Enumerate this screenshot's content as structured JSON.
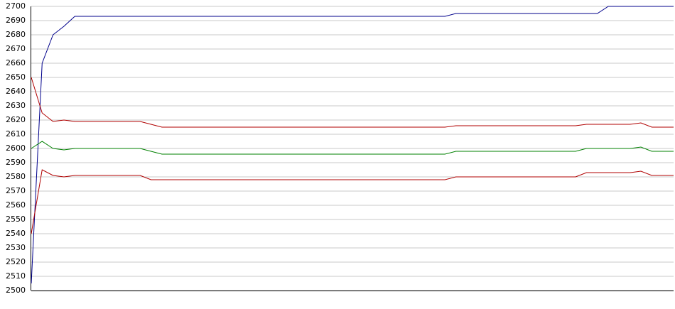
{
  "chart_data": {
    "type": "line",
    "categories": [
      null,
      null,
      null,
      null,
      null,
      null,
      null,
      null,
      null,
      null,
      null,
      null,
      null,
      null,
      null,
      null,
      null,
      null,
      null,
      null,
      null,
      null,
      null,
      null,
      null,
      null,
      null,
      null,
      null,
      null,
      null,
      null,
      null,
      null,
      null,
      null,
      null,
      null,
      null,
      null,
      null,
      null,
      null,
      null,
      null,
      null,
      null,
      null,
      null,
      null,
      null,
      null,
      null,
      null,
      null,
      null,
      null,
      null,
      null,
      null
    ],
    "series": [
      {
        "color": "#00008b",
        "values": [
          2505,
          2660,
          2680,
          2686,
          2693,
          2693,
          2693,
          2693,
          2693,
          2693,
          2693,
          2693,
          2693,
          2693,
          2693,
          2693,
          2693,
          2693,
          2693,
          2693,
          2693,
          2693,
          2693,
          2693,
          2693,
          2693,
          2693,
          2693,
          2693,
          2693,
          2693,
          2693,
          2693,
          2693,
          2693,
          2693,
          2693,
          2693,
          2693,
          2695,
          2695,
          2695,
          2695,
          2695,
          2695,
          2695,
          2695,
          2695,
          2695,
          2695,
          2695,
          2695,
          2695,
          2700,
          2700,
          2700,
          2700,
          2700,
          2700,
          2700
        ]
      },
      {
        "color": "#b00000",
        "values": [
          2650,
          2625,
          2619,
          2620,
          2619,
          2619,
          2619,
          2619,
          2619,
          2619,
          2619,
          2617,
          2615,
          2615,
          2615,
          2615,
          2615,
          2615,
          2615,
          2615,
          2615,
          2615,
          2615,
          2615,
          2615,
          2615,
          2615,
          2615,
          2615,
          2615,
          2615,
          2615,
          2615,
          2615,
          2615,
          2615,
          2615,
          2615,
          2615,
          2616,
          2616,
          2616,
          2616,
          2616,
          2616,
          2616,
          2616,
          2616,
          2616,
          2616,
          2616,
          2617,
          2617,
          2617,
          2617,
          2617,
          2618,
          2615,
          2615,
          2615
        ]
      },
      {
        "color": "#008000",
        "values": [
          2600,
          2605,
          2600,
          2599,
          2600,
          2600,
          2600,
          2600,
          2600,
          2600,
          2600,
          2598,
          2596,
          2596,
          2596,
          2596,
          2596,
          2596,
          2596,
          2596,
          2596,
          2596,
          2596,
          2596,
          2596,
          2596,
          2596,
          2596,
          2596,
          2596,
          2596,
          2596,
          2596,
          2596,
          2596,
          2596,
          2596,
          2596,
          2596,
          2598,
          2598,
          2598,
          2598,
          2598,
          2598,
          2598,
          2598,
          2598,
          2598,
          2598,
          2598,
          2600,
          2600,
          2600,
          2600,
          2600,
          2601,
          2598,
          2598,
          2598
        ]
      },
      {
        "color": "#b00000",
        "values": [
          2540,
          2585,
          2581,
          2580,
          2581,
          2581,
          2581,
          2581,
          2581,
          2581,
          2581,
          2578,
          2578,
          2578,
          2578,
          2578,
          2578,
          2578,
          2578,
          2578,
          2578,
          2578,
          2578,
          2578,
          2578,
          2578,
          2578,
          2578,
          2578,
          2578,
          2578,
          2578,
          2578,
          2578,
          2578,
          2578,
          2578,
          2578,
          2578,
          2580,
          2580,
          2580,
          2580,
          2580,
          2580,
          2580,
          2580,
          2580,
          2580,
          2580,
          2580,
          2583,
          2583,
          2583,
          2583,
          2583,
          2584,
          2581,
          2581,
          2581
        ]
      }
    ],
    "ylim": [
      2500,
      2700
    ],
    "yticks": [
      2500,
      2510,
      2520,
      2530,
      2540,
      2550,
      2560,
      2570,
      2580,
      2590,
      2600,
      2610,
      2620,
      2630,
      2640,
      2650,
      2660,
      2670,
      2680,
      2690,
      2700
    ],
    "grid": true
  }
}
